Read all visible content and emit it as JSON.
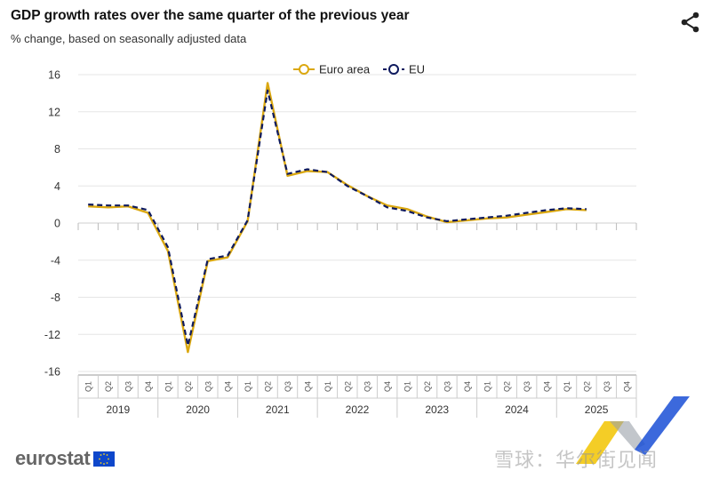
{
  "header": {
    "title": "GDP growth rates over the same quarter of the previous year",
    "subtitle": "% change, based on seasonally adjusted data"
  },
  "icons": {
    "share": "share-icon"
  },
  "footer": {
    "logo": "eurostat",
    "watermark": "雪球：华尔街见闻"
  },
  "colors": {
    "euro_area": "#dba810",
    "eu": "#0e1a5e",
    "grid": "#e6e6e6",
    "axis": "#999999"
  },
  "chart_data": {
    "type": "line",
    "title": "GDP growth rates over the same quarter of the previous year",
    "subtitle": "% change, based on seasonally adjusted data",
    "xlabel": "",
    "ylabel": "",
    "ylim": [
      -16,
      16
    ],
    "yticks": [
      16,
      12,
      8,
      4,
      0,
      -4,
      -8,
      -12,
      -16
    ],
    "grid": true,
    "legend_placement": "top-center",
    "quarters": [
      "Q1",
      "Q2",
      "Q3",
      "Q4"
    ],
    "years": [
      "2019",
      "2020",
      "2021",
      "2022",
      "2023",
      "2024",
      "2025"
    ],
    "x": [
      "2019Q1",
      "2019Q2",
      "2019Q3",
      "2019Q4",
      "2020Q1",
      "2020Q2",
      "2020Q3",
      "2020Q4",
      "2021Q1",
      "2021Q2",
      "2021Q3",
      "2021Q4",
      "2022Q1",
      "2022Q2",
      "2022Q3",
      "2022Q4",
      "2023Q1",
      "2023Q2",
      "2023Q3",
      "2023Q4",
      "2024Q1",
      "2024Q2",
      "2024Q3",
      "2024Q4",
      "2025Q1",
      "2025Q2",
      "2025Q3",
      "2025Q4"
    ],
    "series": [
      {
        "name": "Euro area",
        "color": "#dba810",
        "style": "solid",
        "marker": "circle",
        "values": [
          1.8,
          1.7,
          1.8,
          1.1,
          -3.0,
          -13.9,
          -4.1,
          -3.7,
          0.2,
          15.1,
          5.1,
          5.6,
          5.5,
          4.1,
          2.9,
          1.9,
          1.5,
          0.7,
          0.1,
          0.3,
          0.5,
          0.6,
          0.9,
          1.2,
          1.5,
          1.4,
          null,
          null
        ]
      },
      {
        "name": "EU",
        "color": "#0e1a5e",
        "style": "dashed",
        "marker": "circle",
        "values": [
          2.0,
          1.9,
          1.9,
          1.4,
          -2.6,
          -13.2,
          -3.9,
          -3.5,
          0.3,
          14.3,
          5.3,
          5.8,
          5.5,
          4.0,
          2.9,
          1.7,
          1.3,
          0.6,
          0.2,
          0.4,
          0.6,
          0.8,
          1.1,
          1.4,
          1.6,
          1.5,
          null,
          null
        ]
      }
    ]
  }
}
